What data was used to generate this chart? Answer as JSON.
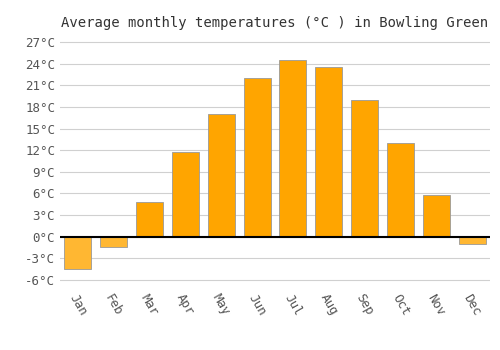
{
  "title": "Average monthly temperatures (°C ) in Bowling Green",
  "months": [
    "Jan",
    "Feb",
    "Mar",
    "Apr",
    "May",
    "Jun",
    "Jul",
    "Aug",
    "Sep",
    "Oct",
    "Nov",
    "Dec"
  ],
  "values": [
    -4.5,
    -1.5,
    4.8,
    11.8,
    17.0,
    22.0,
    24.5,
    23.5,
    19.0,
    13.0,
    5.8,
    -1.0
  ],
  "bar_color_pos": "#FFA500",
  "bar_color_neg": "#FFB732",
  "bar_edge_color": "#999999",
  "background_color": "#ffffff",
  "grid_color": "#d0d0d0",
  "ylim": [
    -7,
    28
  ],
  "yticks": [
    -6,
    -3,
    0,
    3,
    6,
    9,
    12,
    15,
    18,
    21,
    24,
    27
  ],
  "ytick_labels": [
    "-6°C",
    "-3°C",
    "0°C",
    "3°C",
    "6°C",
    "9°C",
    "12°C",
    "15°C",
    "18°C",
    "21°C",
    "24°C",
    "27°C"
  ],
  "title_fontsize": 10,
  "tick_fontsize": 9,
  "font_family": "monospace"
}
